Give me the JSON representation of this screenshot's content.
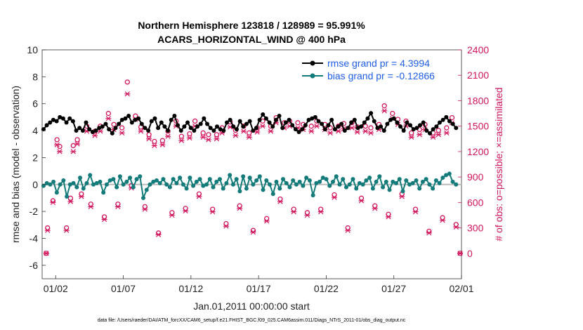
{
  "chart_data": {
    "type": "line",
    "title": [
      "Northern Hemisphere 123818 / 128989 = 95.991%",
      "ACARS_HORIZONTAL_WIND @ 400 hPa"
    ],
    "xlabel": "Jan.01,2011 00:00:00 start",
    "ylabel_left": "rmse and bias (model - observation)",
    "ylabel_right": "# of obs: o=possible; ×=assimilated",
    "ylim_left": [
      -7,
      10
    ],
    "ylim_right": [
      -300,
      2400
    ],
    "x_range_days": [
      0,
      31
    ],
    "x_ticks": [
      {
        "day": 1,
        "label": "01/02"
      },
      {
        "day": 6,
        "label": "01/07"
      },
      {
        "day": 11,
        "label": "01/12"
      },
      {
        "day": 16,
        "label": "01/17"
      },
      {
        "day": 21,
        "label": "01/22"
      },
      {
        "day": 26,
        "label": "01/27"
      },
      {
        "day": 31,
        "label": "02/01"
      }
    ],
    "y_ticks_left": [
      -6,
      -4,
      -2,
      0,
      2,
      4,
      6,
      8,
      10
    ],
    "y_ticks_right": [
      0,
      300,
      600,
      900,
      1200,
      1500,
      1800,
      2100,
      2400
    ],
    "series": [
      {
        "name": "rmse",
        "legend": "rmse grand pr = 4.3994",
        "color": "#000000",
        "axis": "left",
        "values": [
          4.1,
          4.4,
          4.6,
          4.8,
          4.7,
          5.0,
          4.9,
          4.6,
          4.9,
          4.7,
          4.0,
          4.2,
          4.0,
          4.6,
          4.1,
          3.9,
          4.0,
          4.2,
          4.3,
          4.5,
          4.1,
          3.8,
          4.2,
          4.5,
          4.8,
          4.9,
          5.1,
          4.6,
          4.8,
          4.9,
          4.5,
          4.2,
          4.0,
          4.7,
          4.9,
          4.2,
          4.6,
          4.3,
          4.0,
          4.8,
          5.1,
          4.4,
          4.0,
          4.3,
          4.6,
          4.2,
          4.0,
          4.3,
          4.5,
          4.9,
          4.5,
          4.2,
          4.0,
          4.3,
          4.1,
          4.0,
          4.6,
          4.8,
          4.3,
          4.1,
          4.7,
          4.3,
          4.5,
          4.7,
          4.0,
          4.2,
          4.8,
          5.2,
          4.9,
          4.6,
          4.3,
          4.8,
          5.1,
          4.2,
          4.6,
          4.8,
          4.4,
          4.1,
          3.9,
          4.1,
          4.4,
          4.8,
          4.9,
          5.0,
          4.7,
          4.5,
          4.1,
          4.4,
          4.8,
          4.1,
          4.3,
          4.5,
          4.0,
          4.2,
          4.6,
          4.8,
          4.2,
          4.3,
          4.6,
          4.9,
          5.3,
          4.7,
          4.2,
          4.3,
          4.0,
          4.5,
          4.8,
          4.9,
          4.6,
          4.3,
          4.0,
          4.6,
          4.4,
          4.1,
          4.2,
          4.4,
          4.6,
          4.0,
          3.8,
          4.1,
          4.3,
          4.6,
          4.8,
          5.0,
          4.7,
          4.5,
          4.2
        ]
      },
      {
        "name": "bias",
        "legend": "bias grand pr = -0.12866",
        "color": "#137b7a",
        "axis": "left",
        "values": [
          -0.1,
          0.1,
          0.0,
          0.2,
          -0.6,
          0.0,
          0.3,
          -0.9,
          0.0,
          0.1,
          -0.2,
          0.5,
          -0.3,
          0.1,
          0.7,
          0.0,
          0.1,
          0.2,
          -0.6,
          0.0,
          0.3,
          0.4,
          -0.2,
          0.6,
          0.0,
          0.2,
          0.5,
          -0.2,
          0.4,
          0.6,
          -1.0,
          -0.4,
          0.0,
          0.2,
          0.3,
          0.1,
          0.4,
          0.0,
          -0.2,
          0.4,
          0.1,
          0.5,
          0.0,
          -0.3,
          0.5,
          -0.1,
          0.2,
          0.4,
          -0.1,
          0.0,
          0.4,
          -0.2,
          0.2,
          0.4,
          -0.3,
          0.1,
          0.7,
          0.0,
          0.4,
          -0.5,
          0.6,
          -0.3,
          0.5,
          0.0,
          0.3,
          0.6,
          -0.4,
          0.3,
          0.0,
          -0.7,
          0.2,
          -0.3,
          0.4,
          0.1,
          -0.2,
          0.3,
          0.0,
          0.2,
          -0.1,
          0.5,
          0.3,
          -0.8,
          0.1,
          0.2,
          0.5,
          0.4,
          -0.1,
          0.2,
          0.6,
          0.0,
          0.4,
          -0.2,
          0.0,
          0.4,
          -0.3,
          0.1,
          0.0,
          0.3,
          0.5,
          -0.3,
          0.2,
          0.6,
          -0.2,
          0.2,
          -0.4,
          0.2,
          0.1,
          0.4,
          -0.5,
          0.3,
          0.0,
          0.1,
          0.3,
          -0.3,
          0.2,
          0.4,
          0.0,
          -0.3,
          0.3,
          0.1,
          0.5,
          0.7,
          0.8,
          0.2,
          0.0
        ]
      }
    ],
    "obs_possible": [
      [
        0,
        0
      ],
      [
        0.1,
        300
      ],
      [
        0.5,
        620
      ],
      [
        0.8,
        1340
      ],
      [
        1.0,
        1260
      ],
      [
        1.5,
        300
      ],
      [
        1.8,
        650
      ],
      [
        2.0,
        1270
      ],
      [
        2.3,
        1340
      ],
      [
        2.6,
        700
      ],
      [
        3.0,
        1500
      ],
      [
        3.3,
        580
      ],
      [
        3.6,
        1440
      ],
      [
        4.0,
        1500
      ],
      [
        4.3,
        430
      ],
      [
        4.6,
        1650
      ],
      [
        5.0,
        1520
      ],
      [
        5.3,
        580
      ],
      [
        5.6,
        1480
      ],
      [
        6.0,
        2020
      ],
      [
        6.3,
        800
      ],
      [
        6.6,
        1620
      ],
      [
        7.0,
        1490
      ],
      [
        7.3,
        550
      ],
      [
        7.6,
        1400
      ],
      [
        8.0,
        1320
      ],
      [
        8.3,
        240
      ],
      [
        8.6,
        1330
      ],
      [
        9.0,
        1440
      ],
      [
        9.3,
        480
      ],
      [
        9.6,
        1560
      ],
      [
        10.0,
        1380
      ],
      [
        10.3,
        530
      ],
      [
        10.6,
        1410
      ],
      [
        11.0,
        1560
      ],
      [
        11.3,
        700
      ],
      [
        11.6,
        1420
      ],
      [
        12.0,
        1400
      ],
      [
        12.3,
        520
      ],
      [
        12.6,
        1400
      ],
      [
        13.0,
        1480
      ],
      [
        13.3,
        350
      ],
      [
        13.6,
        1550
      ],
      [
        14.0,
        1450
      ],
      [
        14.3,
        560
      ],
      [
        14.6,
        1500
      ],
      [
        15.0,
        1420
      ],
      [
        15.3,
        270
      ],
      [
        15.6,
        1480
      ],
      [
        16.0,
        1560
      ],
      [
        16.3,
        410
      ],
      [
        16.6,
        1500
      ],
      [
        17.0,
        1600
      ],
      [
        17.3,
        640
      ],
      [
        17.6,
        1540
      ],
      [
        18.0,
        1560
      ],
      [
        18.3,
        520
      ],
      [
        18.6,
        1540
      ],
      [
        19.0,
        1520
      ],
      [
        19.3,
        480
      ],
      [
        19.6,
        1500
      ],
      [
        20.0,
        1560
      ],
      [
        20.3,
        520
      ],
      [
        20.6,
        1520
      ],
      [
        21.0,
        1480
      ],
      [
        21.3,
        690
      ],
      [
        21.6,
        1500
      ],
      [
        22.0,
        1530
      ],
      [
        22.3,
        300
      ],
      [
        22.6,
        1540
      ],
      [
        23.0,
        1490
      ],
      [
        23.3,
        650
      ],
      [
        23.6,
        1500
      ],
      [
        24.0,
        1480
      ],
      [
        24.3,
        560
      ],
      [
        24.6,
        1520
      ],
      [
        25.0,
        1740
      ],
      [
        25.3,
        460
      ],
      [
        25.6,
        1650
      ],
      [
        26.0,
        1580
      ],
      [
        26.3,
        700
      ],
      [
        26.6,
        1560
      ],
      [
        27.0,
        1420
      ],
      [
        27.3,
        520
      ],
      [
        27.6,
        1460
      ],
      [
        28.0,
        1520
      ],
      [
        28.3,
        260
      ],
      [
        28.6,
        1420
      ],
      [
        29.0,
        1450
      ],
      [
        29.3,
        420
      ],
      [
        29.6,
        1480
      ],
      [
        30.0,
        1600
      ],
      [
        30.3,
        340
      ],
      [
        30.6,
        0
      ]
    ],
    "obs_assimilated": [
      [
        0,
        0
      ],
      [
        0.1,
        270
      ],
      [
        0.5,
        600
      ],
      [
        0.8,
        1280
      ],
      [
        1.0,
        1200
      ],
      [
        1.5,
        270
      ],
      [
        1.8,
        610
      ],
      [
        2.0,
        1200
      ],
      [
        2.3,
        1290
      ],
      [
        2.6,
        670
      ],
      [
        3.0,
        1440
      ],
      [
        3.3,
        550
      ],
      [
        3.6,
        1390
      ],
      [
        4.0,
        1440
      ],
      [
        4.3,
        400
      ],
      [
        4.6,
        1590
      ],
      [
        5.0,
        1460
      ],
      [
        5.3,
        550
      ],
      [
        5.6,
        1420
      ],
      [
        6.0,
        1880
      ],
      [
        6.3,
        770
      ],
      [
        6.6,
        1580
      ],
      [
        7.0,
        1440
      ],
      [
        7.3,
        520
      ],
      [
        7.6,
        1350
      ],
      [
        8.0,
        1270
      ],
      [
        8.3,
        220
      ],
      [
        8.6,
        1280
      ],
      [
        9.0,
        1380
      ],
      [
        9.3,
        450
      ],
      [
        9.6,
        1500
      ],
      [
        10.0,
        1330
      ],
      [
        10.3,
        500
      ],
      [
        10.6,
        1360
      ],
      [
        11.0,
        1500
      ],
      [
        11.3,
        670
      ],
      [
        11.6,
        1370
      ],
      [
        12.0,
        1340
      ],
      [
        12.3,
        490
      ],
      [
        12.6,
        1350
      ],
      [
        13.0,
        1420
      ],
      [
        13.3,
        320
      ],
      [
        13.6,
        1490
      ],
      [
        14.0,
        1390
      ],
      [
        14.3,
        530
      ],
      [
        14.6,
        1440
      ],
      [
        15.0,
        1370
      ],
      [
        15.3,
        250
      ],
      [
        15.6,
        1430
      ],
      [
        16.0,
        1500
      ],
      [
        16.3,
        380
      ],
      [
        16.6,
        1440
      ],
      [
        17.0,
        1540
      ],
      [
        17.3,
        610
      ],
      [
        17.6,
        1480
      ],
      [
        18.0,
        1500
      ],
      [
        18.3,
        490
      ],
      [
        18.6,
        1480
      ],
      [
        19.0,
        1460
      ],
      [
        19.3,
        450
      ],
      [
        19.6,
        1440
      ],
      [
        20.0,
        1500
      ],
      [
        20.3,
        490
      ],
      [
        20.6,
        1460
      ],
      [
        21.0,
        1420
      ],
      [
        21.3,
        660
      ],
      [
        21.6,
        1440
      ],
      [
        22.0,
        1470
      ],
      [
        22.3,
        270
      ],
      [
        22.6,
        1480
      ],
      [
        23.0,
        1430
      ],
      [
        23.3,
        620
      ],
      [
        23.6,
        1440
      ],
      [
        24.0,
        1420
      ],
      [
        24.3,
        530
      ],
      [
        24.6,
        1460
      ],
      [
        25.0,
        1680
      ],
      [
        25.3,
        430
      ],
      [
        25.6,
        1590
      ],
      [
        26.0,
        1520
      ],
      [
        26.3,
        670
      ],
      [
        26.6,
        1500
      ],
      [
        27.0,
        1370
      ],
      [
        27.3,
        490
      ],
      [
        27.6,
        1400
      ],
      [
        28.0,
        1460
      ],
      [
        28.3,
        240
      ],
      [
        28.6,
        1370
      ],
      [
        29.0,
        1400
      ],
      [
        29.3,
        390
      ],
      [
        29.6,
        1420
      ],
      [
        30.0,
        1540
      ],
      [
        30.3,
        310
      ],
      [
        30.6,
        0
      ]
    ],
    "zero_line": true
  },
  "footer": "data file: /Users/raeder/DAI/ATM_forcXX/CAM6_setup/f.e21.FHIST_BGC.f09_025.CAM6assim.011/Diags_NTrS_2011-01/obs_diag_output.nc"
}
